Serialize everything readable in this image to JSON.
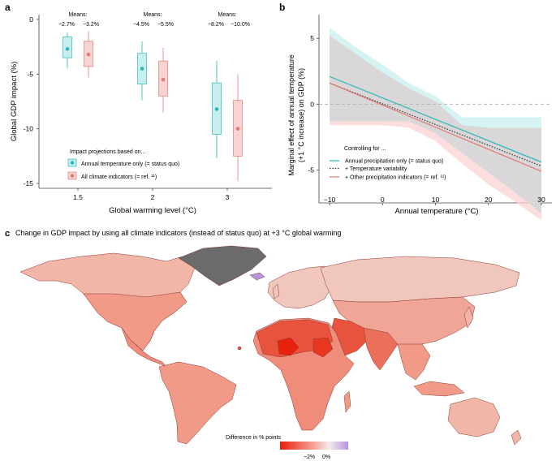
{
  "colors": {
    "teal": "#2bb7b7",
    "teal_light": "#c8eff0",
    "salmon": "#e07a73",
    "salmon_light": "#f9d3d2",
    "grey_band": "#d6d6d6",
    "land_base": "#f1a597",
    "land_dark": "#e8533e",
    "land_hot": "#e8200e",
    "land_light": "#f1c6bd",
    "greenland": "#6b6b6b",
    "purple": "#b496e0"
  },
  "panel_a": {
    "label": "a",
    "ylabel": "Global GDP impact (%)",
    "xlabel": "Global warming level (°C)",
    "means_title": "Means:",
    "legend_title": "Impact projections based on...",
    "legend_items": [
      "Annual temperature only (= status quo)",
      "All climate indicators (= ref. ¹¹)"
    ]
  },
  "panel_b": {
    "label": "b",
    "ylabel_line1": "Marginal effect of annual temperature",
    "ylabel_line2": "(+1 °C increase) on GDP (%)",
    "xlabel": "Annual temperature (°C)",
    "legend_title": "Controlling for ...",
    "legend_items": [
      "Annual precipitation only (= status quo)",
      "+ Temperature variability",
      "+ Other precipitation indicators (= ref. ¹¹)"
    ]
  },
  "panel_c": {
    "label": "c",
    "title": "Change in GDP impact by using all climate indicators (instead of status quo) at +3 °C global warming",
    "colorbar_label": "Difference in % points",
    "colorbar_ticks": [
      "−2%",
      "0%"
    ]
  },
  "chart_data": [
    {
      "type": "box",
      "panel": "a",
      "categories": [
        "1.5",
        "2",
        "3"
      ],
      "ylim": [
        -15,
        0
      ],
      "yticks": [
        0,
        -5,
        -10,
        -15
      ],
      "mean_labels": [
        [
          "−2.7%",
          "−3.2%"
        ],
        [
          "−4.5%",
          "−5.5%"
        ],
        [
          "−8.2%",
          "−10.0%"
        ]
      ],
      "series": [
        {
          "name": "Annual temperature only (= status quo)",
          "boxes": [
            {
              "mean": -2.7,
              "q1": -3.5,
              "q3": -1.6,
              "wlo": -4.5,
              "whi": -1.2
            },
            {
              "mean": -4.5,
              "q1": -5.9,
              "q3": -3.1,
              "wlo": -7.4,
              "whi": -2.0
            },
            {
              "mean": -8.2,
              "q1": -10.5,
              "q3": -5.8,
              "wlo": -12.7,
              "whi": -3.8
            }
          ]
        },
        {
          "name": "All climate indicators (= ref. 11)",
          "boxes": [
            {
              "mean": -3.2,
              "q1": -4.3,
              "q3": -2.0,
              "wlo": -5.3,
              "whi": -1.1
            },
            {
              "mean": -5.5,
              "q1": -7.0,
              "q3": -3.8,
              "wlo": -8.5,
              "whi": -2.6
            },
            {
              "mean": -10.0,
              "q1": -12.5,
              "q3": -7.4,
              "wlo": -14.8,
              "whi": -5.0
            }
          ]
        }
      ]
    },
    {
      "type": "line",
      "panel": "b",
      "xlim": [
        -12,
        32
      ],
      "ylim": [
        -7.5,
        6.8
      ],
      "xticks": [
        -10,
        0,
        10,
        20,
        30
      ],
      "yticks": [
        5,
        0,
        -5
      ],
      "series": [
        {
          "name": "Annual precipitation only (= status quo)",
          "x": [
            -10,
            30
          ],
          "y": [
            2.1,
            -4.4
          ],
          "band_x": [
            -10,
            -5,
            0,
            5,
            10,
            15,
            20,
            25,
            30
          ],
          "band_hi": [
            5.8,
            4.3,
            3.0,
            1.6,
            0.6,
            -1.0,
            -1.0,
            -1.0,
            -1.0
          ],
          "band_lo": [
            -1.3,
            -1.3,
            -1.3,
            -1.3,
            -2.2,
            -3.7,
            -5.2,
            -6.7,
            -8.3
          ]
        },
        {
          "name": "+ Temperature variability",
          "x": [
            -10,
            30
          ],
          "y": [
            1.6,
            -4.7
          ]
        },
        {
          "name": "+ Other precipitation indicators (= ref. 11)",
          "x": [
            -10,
            30
          ],
          "y": [
            1.6,
            -5.1
          ],
          "band_x": [
            -10,
            -5,
            0,
            5,
            10,
            15,
            20,
            25,
            30
          ],
          "band_hi": [
            5.2,
            3.8,
            2.4,
            1.2,
            0.2,
            -1.6,
            -1.8,
            -1.8,
            -1.8
          ],
          "band_lo": [
            -1.6,
            -1.6,
            -1.6,
            -1.8,
            -2.8,
            -4.5,
            -6.1,
            -7.4,
            -8.8
          ]
        }
      ]
    },
    {
      "type": "map",
      "panel": "c",
      "description_of_scale": "diverging: red = more negative difference, purple = positive",
      "colorbar_range_pct": [
        -3,
        1
      ]
    }
  ]
}
